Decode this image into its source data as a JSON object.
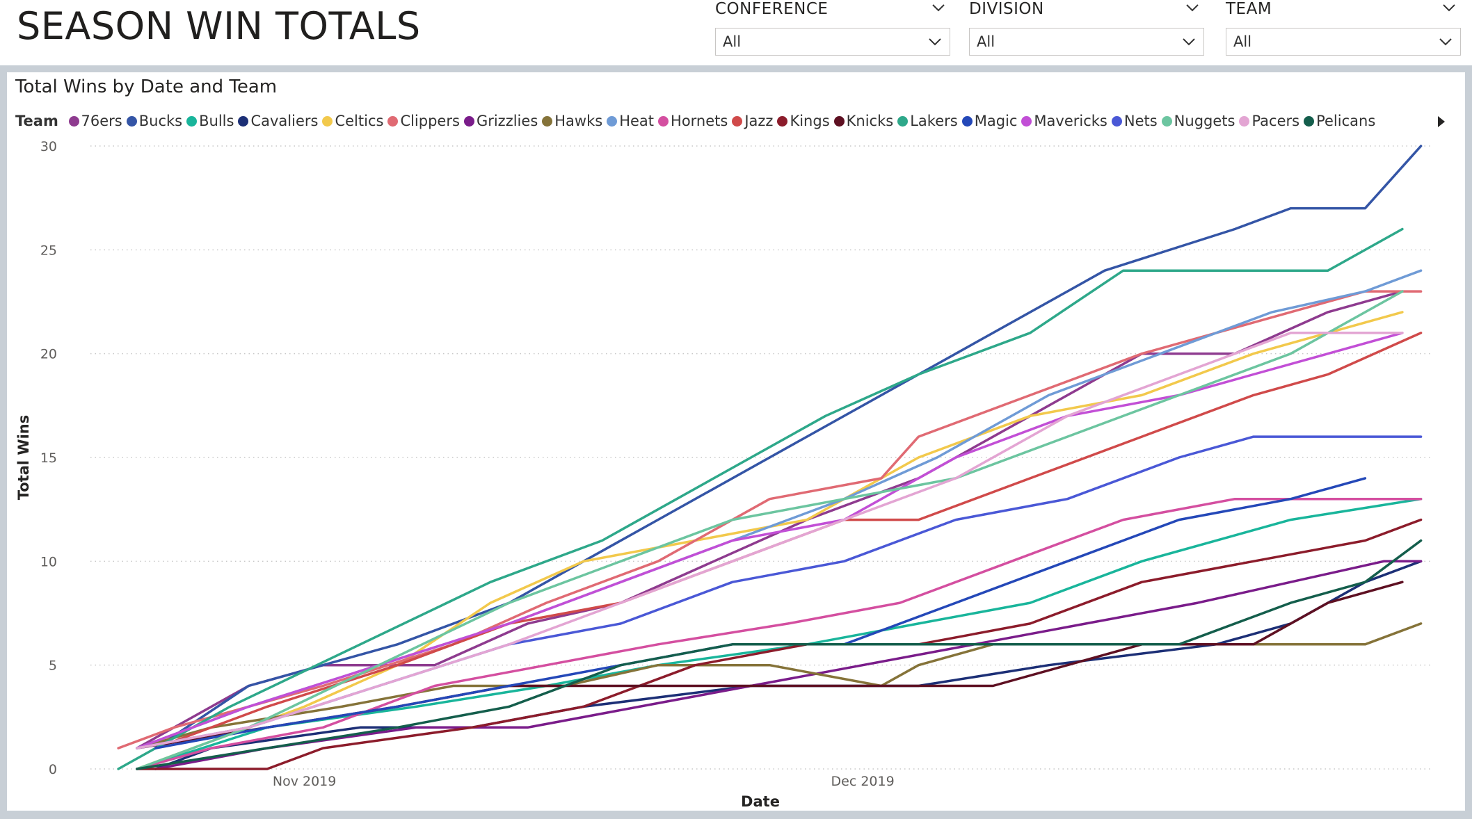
{
  "page": {
    "title": "SEASON WIN TOTALS"
  },
  "slicers": [
    {
      "label": "CONFERENCE",
      "value": "All"
    },
    {
      "label": "DIVISION",
      "value": "All"
    },
    {
      "label": "TEAM",
      "value": "All"
    }
  ],
  "visual": {
    "title": "Total Wins by Date and Team",
    "legend_label": "Team"
  },
  "chart_data": {
    "type": "line",
    "title": "Total Wins by Date and Team",
    "xlabel": "Date",
    "ylabel": "Total Wins",
    "x_start": "2019-10-22",
    "x_end": "2019-12-31",
    "x_ticks": [
      {
        "date": "2019-11-01",
        "label": "Nov 2019"
      },
      {
        "date": "2019-12-01",
        "label": "Dec 2019"
      }
    ],
    "ylim": [
      0,
      30
    ],
    "y_ticks": [
      0,
      5,
      10,
      15,
      20,
      25,
      30
    ],
    "grid": "horizontal dotted",
    "legend_position": "top",
    "series": [
      {
        "name": "76ers",
        "color": "#8e3b8f",
        "points": [
          [
            "2019-10-23",
            1
          ],
          [
            "2019-10-29",
            4
          ],
          [
            "2019-11-02",
            5
          ],
          [
            "2019-11-08",
            5
          ],
          [
            "2019-11-13",
            7
          ],
          [
            "2019-11-18",
            8
          ],
          [
            "2019-11-28",
            12
          ],
          [
            "2019-12-04",
            14
          ],
          [
            "2019-12-10",
            17
          ],
          [
            "2019-12-16",
            20
          ],
          [
            "2019-12-21",
            20
          ],
          [
            "2019-12-26",
            22
          ],
          [
            "2019-12-30",
            23
          ]
        ]
      },
      {
        "name": "Bucks",
        "color": "#3455a6",
        "points": [
          [
            "2019-10-24",
            1
          ],
          [
            "2019-10-29",
            4
          ],
          [
            "2019-11-06",
            6
          ],
          [
            "2019-11-12",
            8
          ],
          [
            "2019-11-20",
            12
          ],
          [
            "2019-11-28",
            16
          ],
          [
            "2019-12-06",
            20
          ],
          [
            "2019-12-12",
            23
          ],
          [
            "2019-12-14",
            24
          ],
          [
            "2019-12-21",
            26
          ],
          [
            "2019-12-24",
            27
          ],
          [
            "2019-12-28",
            27
          ],
          [
            "2019-12-31",
            30
          ]
        ]
      },
      {
        "name": "Bulls",
        "color": "#19b59b",
        "points": [
          [
            "2019-10-23",
            0
          ],
          [
            "2019-10-30",
            2
          ],
          [
            "2019-11-07",
            3
          ],
          [
            "2019-11-14",
            4
          ],
          [
            "2019-11-20",
            5
          ],
          [
            "2019-11-28",
            6
          ],
          [
            "2019-12-04",
            7
          ],
          [
            "2019-12-10",
            8
          ],
          [
            "2019-12-16",
            10
          ],
          [
            "2019-12-24",
            12
          ],
          [
            "2019-12-31",
            13
          ]
        ]
      },
      {
        "name": "Cavaliers",
        "color": "#1c2f76",
        "points": [
          [
            "2019-10-24",
            0
          ],
          [
            "2019-10-27",
            1
          ],
          [
            "2019-11-04",
            2
          ],
          [
            "2019-11-10",
            2
          ],
          [
            "2019-11-16",
            3
          ],
          [
            "2019-11-25",
            4
          ],
          [
            "2019-12-04",
            4
          ],
          [
            "2019-12-11",
            5
          ],
          [
            "2019-12-20",
            6
          ],
          [
            "2019-12-24",
            7
          ],
          [
            "2019-12-28",
            9
          ],
          [
            "2019-12-31",
            10
          ]
        ]
      },
      {
        "name": "Celtics",
        "color": "#f2c94c",
        "points": [
          [
            "2019-10-23",
            0
          ],
          [
            "2019-10-26",
            1
          ],
          [
            "2019-11-01",
            3
          ],
          [
            "2019-11-06",
            5
          ],
          [
            "2019-11-11",
            8
          ],
          [
            "2019-11-16",
            10
          ],
          [
            "2019-11-22",
            11
          ],
          [
            "2019-11-28",
            12
          ],
          [
            "2019-12-04",
            15
          ],
          [
            "2019-12-10",
            17
          ],
          [
            "2019-12-16",
            18
          ],
          [
            "2019-12-22",
            20
          ],
          [
            "2019-12-26",
            21
          ],
          [
            "2019-12-30",
            22
          ]
        ]
      },
      {
        "name": "Clippers",
        "color": "#e06a73",
        "points": [
          [
            "2019-10-22",
            1
          ],
          [
            "2019-10-25",
            2
          ],
          [
            "2019-11-02",
            4
          ],
          [
            "2019-11-09",
            6
          ],
          [
            "2019-11-14",
            8
          ],
          [
            "2019-11-20",
            10
          ],
          [
            "2019-11-26",
            13
          ],
          [
            "2019-12-02",
            14
          ],
          [
            "2019-12-04",
            16
          ],
          [
            "2019-12-10",
            18
          ],
          [
            "2019-12-16",
            20
          ],
          [
            "2019-12-20",
            21
          ],
          [
            "2019-12-24",
            22
          ],
          [
            "2019-12-28",
            23
          ],
          [
            "2019-12-31",
            23
          ]
        ]
      },
      {
        "name": "Grizzlies",
        "color": "#7a1c8a",
        "points": [
          [
            "2019-10-24",
            0
          ],
          [
            "2019-10-30",
            1
          ],
          [
            "2019-11-07",
            2
          ],
          [
            "2019-11-13",
            2
          ],
          [
            "2019-11-19",
            3
          ],
          [
            "2019-11-25",
            4
          ],
          [
            "2019-12-01",
            5
          ],
          [
            "2019-12-07",
            6
          ],
          [
            "2019-12-13",
            7
          ],
          [
            "2019-12-19",
            8
          ],
          [
            "2019-12-24",
            9
          ],
          [
            "2019-12-29",
            10
          ],
          [
            "2019-12-31",
            10
          ]
        ]
      },
      {
        "name": "Hawks",
        "color": "#857339",
        "points": [
          [
            "2019-10-23",
            1
          ],
          [
            "2019-10-27",
            2
          ],
          [
            "2019-11-03",
            3
          ],
          [
            "2019-11-09",
            4
          ],
          [
            "2019-11-15",
            4
          ],
          [
            "2019-11-20",
            5
          ],
          [
            "2019-11-26",
            5
          ],
          [
            "2019-12-02",
            4
          ],
          [
            "2019-12-04",
            5
          ],
          [
            "2019-12-08",
            6
          ],
          [
            "2019-12-20",
            6
          ],
          [
            "2019-12-28",
            6
          ],
          [
            "2019-12-31",
            7
          ]
        ]
      },
      {
        "name": "Heat",
        "color": "#6f9bd6",
        "points": [
          [
            "2019-10-23",
            1
          ],
          [
            "2019-10-29",
            3
          ],
          [
            "2019-11-05",
            5
          ],
          [
            "2019-11-12",
            7
          ],
          [
            "2019-11-18",
            9
          ],
          [
            "2019-11-24",
            11
          ],
          [
            "2019-11-30",
            13
          ],
          [
            "2019-12-05",
            15
          ],
          [
            "2019-12-11",
            18
          ],
          [
            "2019-12-17",
            20
          ],
          [
            "2019-12-23",
            22
          ],
          [
            "2019-12-28",
            23
          ],
          [
            "2019-12-31",
            24
          ]
        ]
      },
      {
        "name": "Hornets",
        "color": "#d44fa0",
        "points": [
          [
            "2019-10-23",
            0
          ],
          [
            "2019-10-27",
            1
          ],
          [
            "2019-11-02",
            2
          ],
          [
            "2019-11-08",
            4
          ],
          [
            "2019-11-14",
            5
          ],
          [
            "2019-11-20",
            6
          ],
          [
            "2019-11-27",
            7
          ],
          [
            "2019-12-03",
            8
          ],
          [
            "2019-12-09",
            10
          ],
          [
            "2019-12-15",
            12
          ],
          [
            "2019-12-21",
            13
          ],
          [
            "2019-12-31",
            13
          ]
        ]
      },
      {
        "name": "Jazz",
        "color": "#d04a4a",
        "points": [
          [
            "2019-10-24",
            1
          ],
          [
            "2019-10-30",
            3
          ],
          [
            "2019-11-06",
            5
          ],
          [
            "2019-11-12",
            7
          ],
          [
            "2019-11-18",
            8
          ],
          [
            "2019-11-24",
            10
          ],
          [
            "2019-11-30",
            12
          ],
          [
            "2019-12-04",
            12
          ],
          [
            "2019-12-10",
            14
          ],
          [
            "2019-12-16",
            16
          ],
          [
            "2019-12-22",
            18
          ],
          [
            "2019-12-26",
            19
          ],
          [
            "2019-12-31",
            21
          ]
        ]
      },
      {
        "name": "Kings",
        "color": "#8c1c2b",
        "points": [
          [
            "2019-10-23",
            0
          ],
          [
            "2019-10-30",
            0
          ],
          [
            "2019-11-02",
            1
          ],
          [
            "2019-11-10",
            2
          ],
          [
            "2019-11-16",
            3
          ],
          [
            "2019-11-22",
            5
          ],
          [
            "2019-11-28",
            6
          ],
          [
            "2019-12-04",
            6
          ],
          [
            "2019-12-10",
            7
          ],
          [
            "2019-12-16",
            9
          ],
          [
            "2019-12-22",
            10
          ],
          [
            "2019-12-28",
            11
          ],
          [
            "2019-12-31",
            12
          ]
        ]
      },
      {
        "name": "Knicks",
        "color": "#5e1022",
        "points": [
          [
            "2019-10-23",
            1
          ],
          [
            "2019-10-30",
            2
          ],
          [
            "2019-11-06",
            3
          ],
          [
            "2019-11-12",
            4
          ],
          [
            "2019-11-18",
            4
          ],
          [
            "2019-11-24",
            4
          ],
          [
            "2019-11-28",
            4
          ],
          [
            "2019-12-08",
            4
          ],
          [
            "2019-12-12",
            5
          ],
          [
            "2019-12-16",
            6
          ],
          [
            "2019-12-22",
            6
          ],
          [
            "2019-12-26",
            8
          ],
          [
            "2019-12-30",
            9
          ]
        ]
      },
      {
        "name": "Lakers",
        "color": "#2ea88a",
        "points": [
          [
            "2019-10-22",
            0
          ],
          [
            "2019-10-28",
            3
          ],
          [
            "2019-11-04",
            6
          ],
          [
            "2019-11-11",
            9
          ],
          [
            "2019-11-17",
            11
          ],
          [
            "2019-11-23",
            14
          ],
          [
            "2019-11-29",
            17
          ],
          [
            "2019-12-04",
            19
          ],
          [
            "2019-12-10",
            21
          ],
          [
            "2019-12-15",
            24
          ],
          [
            "2019-12-20",
            24
          ],
          [
            "2019-12-26",
            24
          ],
          [
            "2019-12-30",
            26
          ]
        ]
      },
      {
        "name": "Magic",
        "color": "#2448b8",
        "points": [
          [
            "2019-10-24",
            1
          ],
          [
            "2019-10-30",
            2
          ],
          [
            "2019-11-06",
            3
          ],
          [
            "2019-11-12",
            4
          ],
          [
            "2019-11-18",
            5
          ],
          [
            "2019-11-24",
            6
          ],
          [
            "2019-11-30",
            6
          ],
          [
            "2019-12-06",
            8
          ],
          [
            "2019-12-12",
            10
          ],
          [
            "2019-12-18",
            12
          ],
          [
            "2019-12-24",
            13
          ],
          [
            "2019-12-28",
            14
          ]
        ]
      },
      {
        "name": "Mavericks",
        "color": "#c24fd6",
        "points": [
          [
            "2019-10-23",
            1
          ],
          [
            "2019-10-29",
            3
          ],
          [
            "2019-11-05",
            5
          ],
          [
            "2019-11-12",
            7
          ],
          [
            "2019-11-18",
            9
          ],
          [
            "2019-11-24",
            11
          ],
          [
            "2019-11-30",
            12
          ],
          [
            "2019-12-06",
            15
          ],
          [
            "2019-12-12",
            17
          ],
          [
            "2019-12-18",
            18
          ],
          [
            "2019-12-22",
            19
          ],
          [
            "2019-12-26",
            20
          ],
          [
            "2019-12-30",
            21
          ]
        ]
      },
      {
        "name": "Nets",
        "color": "#4a58d6",
        "points": [
          [
            "2019-10-23",
            1
          ],
          [
            "2019-10-29",
            2
          ],
          [
            "2019-11-05",
            4
          ],
          [
            "2019-11-12",
            6
          ],
          [
            "2019-11-18",
            7
          ],
          [
            "2019-11-24",
            9
          ],
          [
            "2019-11-30",
            10
          ],
          [
            "2019-12-06",
            12
          ],
          [
            "2019-12-12",
            13
          ],
          [
            "2019-12-18",
            15
          ],
          [
            "2019-12-22",
            16
          ],
          [
            "2019-12-31",
            16
          ]
        ]
      },
      {
        "name": "Nuggets",
        "color": "#6cc5a0",
        "points": [
          [
            "2019-10-23",
            0
          ],
          [
            "2019-10-29",
            2
          ],
          [
            "2019-11-05",
            5
          ],
          [
            "2019-11-12",
            8
          ],
          [
            "2019-11-18",
            10
          ],
          [
            "2019-11-24",
            12
          ],
          [
            "2019-11-30",
            13
          ],
          [
            "2019-12-06",
            14
          ],
          [
            "2019-12-12",
            16
          ],
          [
            "2019-12-18",
            18
          ],
          [
            "2019-12-24",
            20
          ],
          [
            "2019-12-30",
            23
          ]
        ]
      },
      {
        "name": "Pacers",
        "color": "#e3a5d3",
        "points": [
          [
            "2019-10-23",
            1
          ],
          [
            "2019-10-29",
            2
          ],
          [
            "2019-11-05",
            4
          ],
          [
            "2019-11-12",
            6
          ],
          [
            "2019-11-18",
            8
          ],
          [
            "2019-11-24",
            10
          ],
          [
            "2019-11-30",
            12
          ],
          [
            "2019-12-06",
            14
          ],
          [
            "2019-12-12",
            17
          ],
          [
            "2019-12-18",
            19
          ],
          [
            "2019-12-24",
            21
          ],
          [
            "2019-12-30",
            21
          ]
        ]
      },
      {
        "name": "Pelicans",
        "color": "#145e4c",
        "points": [
          [
            "2019-10-23",
            0
          ],
          [
            "2019-10-30",
            1
          ],
          [
            "2019-11-06",
            2
          ],
          [
            "2019-11-12",
            3
          ],
          [
            "2019-11-18",
            5
          ],
          [
            "2019-11-24",
            6
          ],
          [
            "2019-11-30",
            6
          ],
          [
            "2019-12-06",
            6
          ],
          [
            "2019-12-12",
            6
          ],
          [
            "2019-12-18",
            6
          ],
          [
            "2019-12-24",
            8
          ],
          [
            "2019-12-28",
            9
          ],
          [
            "2019-12-31",
            11
          ]
        ]
      }
    ]
  }
}
